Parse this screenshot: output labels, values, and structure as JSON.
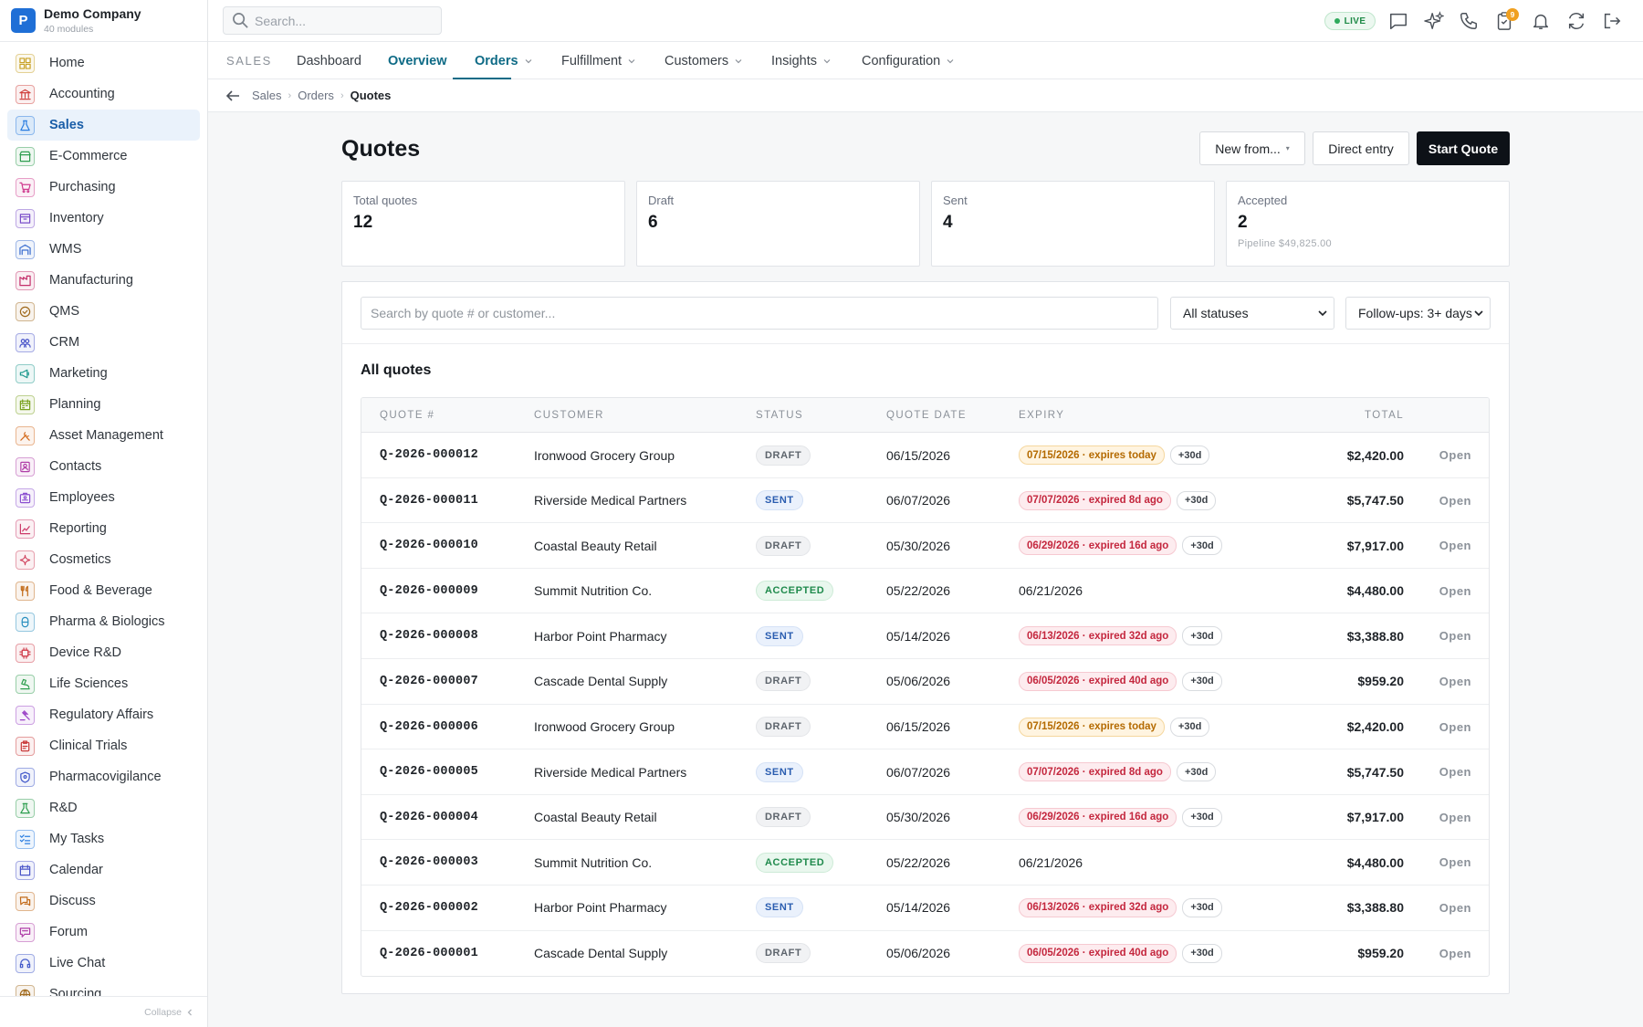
{
  "company": {
    "name": "Demo Company",
    "modules": "40 modules",
    "logo_letter": "P"
  },
  "sidebar": {
    "items": [
      {
        "label": "Home",
        "icon": "grid-icon",
        "color": "#c9a227"
      },
      {
        "label": "Accounting",
        "icon": "bank-icon",
        "color": "#d0433f"
      },
      {
        "label": "Sales",
        "icon": "flask-icon",
        "color": "#2a7de1",
        "active": true
      },
      {
        "label": "E-Commerce",
        "icon": "storefront-icon",
        "color": "#2e9e4f"
      },
      {
        "label": "Purchasing",
        "icon": "cart-icon",
        "color": "#d03c8f"
      },
      {
        "label": "Inventory",
        "icon": "box-icon",
        "color": "#7a4ec9"
      },
      {
        "label": "WMS",
        "icon": "warehouse-icon",
        "color": "#3c6fd0"
      },
      {
        "label": "Manufacturing",
        "icon": "factory-icon",
        "color": "#c42f6b"
      },
      {
        "label": "QMS",
        "icon": "badge-check-icon",
        "color": "#a06a1d"
      },
      {
        "label": "CRM",
        "icon": "users-icon",
        "color": "#4a55c9"
      },
      {
        "label": "Marketing",
        "icon": "megaphone-icon",
        "color": "#1f9a8f"
      },
      {
        "label": "Planning",
        "icon": "calendar-grid-icon",
        "color": "#7aa21f"
      },
      {
        "label": "Asset Management",
        "icon": "tools-icon",
        "color": "#d36a1c"
      },
      {
        "label": "Contacts",
        "icon": "contact-icon",
        "color": "#b03fa8"
      },
      {
        "label": "Employees",
        "icon": "id-badge-icon",
        "color": "#8a4fd0"
      },
      {
        "label": "Reporting",
        "icon": "chart-icon",
        "color": "#cc3a6a"
      },
      {
        "label": "Cosmetics",
        "icon": "sparkle-icon",
        "color": "#d0435e"
      },
      {
        "label": "Food & Beverage",
        "icon": "utensils-icon",
        "color": "#c26a18"
      },
      {
        "label": "Pharma & Biologics",
        "icon": "pill-icon",
        "color": "#2a8fbf"
      },
      {
        "label": "Device R&D",
        "icon": "chip-icon",
        "color": "#d03c4a"
      },
      {
        "label": "Life Sciences",
        "icon": "microscope-icon",
        "color": "#2e9e4f"
      },
      {
        "label": "Regulatory Affairs",
        "icon": "gavel-icon",
        "color": "#9a40c6"
      },
      {
        "label": "Clinical Trials",
        "icon": "clipboard-icon",
        "color": "#c93a3a"
      },
      {
        "label": "Pharmacovigilance",
        "icon": "shield-icon",
        "color": "#3f56c9"
      },
      {
        "label": "R&D",
        "icon": "beaker-icon",
        "color": "#2e9e4f"
      },
      {
        "label": "My Tasks",
        "icon": "checklist-icon",
        "color": "#2a7de1"
      },
      {
        "label": "Calendar",
        "icon": "calendar-icon",
        "color": "#4a55c9"
      },
      {
        "label": "Discuss",
        "icon": "chat-icon",
        "color": "#c26a18"
      },
      {
        "label": "Forum",
        "icon": "forum-icon",
        "color": "#b03fa8"
      },
      {
        "label": "Live Chat",
        "icon": "headset-icon",
        "color": "#3f56c9"
      },
      {
        "label": "Sourcing",
        "icon": "globe-icon",
        "color": "#a06a1d"
      }
    ],
    "collapse_label": "Collapse"
  },
  "topbar": {
    "search_placeholder": "Search...",
    "live_label": "LIVE",
    "notification_badge": "9"
  },
  "tabs": {
    "section": "SALES",
    "items": [
      {
        "label": "Dashboard"
      },
      {
        "label": "Overview"
      },
      {
        "label": "Orders"
      },
      {
        "label": "Fulfillment"
      },
      {
        "label": "Customers"
      },
      {
        "label": "Insights"
      },
      {
        "label": "Configuration"
      }
    ]
  },
  "breadcrumb": [
    "Sales",
    "Orders",
    "Quotes"
  ],
  "page": {
    "title": "Quotes",
    "actions": {
      "new_from": "New from...",
      "direct_entry": "Direct entry",
      "start_quote": "Start Quote"
    }
  },
  "kpis": [
    {
      "label": "Total quotes",
      "value": "12",
      "sub": ""
    },
    {
      "label": "Draft",
      "value": "6",
      "sub": ""
    },
    {
      "label": "Sent",
      "value": "4",
      "sub": ""
    },
    {
      "label": "Accepted",
      "value": "2",
      "sub": "Pipeline $49,825.00"
    }
  ],
  "filters": {
    "search_placeholder": "Search by quote # or customer...",
    "status_value": "All statuses",
    "followup_value": "Follow-ups: 3+ days"
  },
  "table": {
    "title": "All quotes",
    "columns": [
      "QUOTE #",
      "CUSTOMER",
      "STATUS",
      "QUOTE DATE",
      "EXPIRY",
      "TOTAL"
    ],
    "rows": [
      {
        "quote": "Q-2026-000012",
        "customer": "Ironwood Grocery Group",
        "status": "DRAFT",
        "date": "06/15/2026",
        "expiry": "07/15/2026 · expires today",
        "expiry_kind": "today",
        "extend": "+30d",
        "total": "$2,420.00",
        "action": "Open"
      },
      {
        "quote": "Q-2026-000011",
        "customer": "Riverside Medical Partners",
        "status": "SENT",
        "date": "06/07/2026",
        "expiry": "07/07/2026 · expired 8d ago",
        "expiry_kind": "expired",
        "extend": "+30d",
        "total": "$5,747.50",
        "action": "Open"
      },
      {
        "quote": "Q-2026-000010",
        "customer": "Coastal Beauty Retail",
        "status": "DRAFT",
        "date": "05/30/2026",
        "expiry": "06/29/2026 · expired 16d ago",
        "expiry_kind": "expired",
        "extend": "+30d",
        "total": "$7,917.00",
        "action": "Open"
      },
      {
        "quote": "Q-2026-000009",
        "customer": "Summit Nutrition Co.",
        "status": "ACCEPTED",
        "date": "05/22/2026",
        "expiry": "06/21/2026",
        "expiry_kind": "plain",
        "extend": "",
        "total": "$4,480.00",
        "action": "Open"
      },
      {
        "quote": "Q-2026-000008",
        "customer": "Harbor Point Pharmacy",
        "status": "SENT",
        "date": "05/14/2026",
        "expiry": "06/13/2026 · expired 32d ago",
        "expiry_kind": "expired",
        "extend": "+30d",
        "total": "$3,388.80",
        "action": "Open"
      },
      {
        "quote": "Q-2026-000007",
        "customer": "Cascade Dental Supply",
        "status": "DRAFT",
        "date": "05/06/2026",
        "expiry": "06/05/2026 · expired 40d ago",
        "expiry_kind": "expired",
        "extend": "+30d",
        "total": "$959.20",
        "action": "Open"
      },
      {
        "quote": "Q-2026-000006",
        "customer": "Ironwood Grocery Group",
        "status": "DRAFT",
        "date": "06/15/2026",
        "expiry": "07/15/2026 · expires today",
        "expiry_kind": "today",
        "extend": "+30d",
        "total": "$2,420.00",
        "action": "Open"
      },
      {
        "quote": "Q-2026-000005",
        "customer": "Riverside Medical Partners",
        "status": "SENT",
        "date": "06/07/2026",
        "expiry": "07/07/2026 · expired 8d ago",
        "expiry_kind": "expired",
        "extend": "+30d",
        "total": "$5,747.50",
        "action": "Open"
      },
      {
        "quote": "Q-2026-000004",
        "customer": "Coastal Beauty Retail",
        "status": "DRAFT",
        "date": "05/30/2026",
        "expiry": "06/29/2026 · expired 16d ago",
        "expiry_kind": "expired",
        "extend": "+30d",
        "total": "$7,917.00",
        "action": "Open"
      },
      {
        "quote": "Q-2026-000003",
        "customer": "Summit Nutrition Co.",
        "status": "ACCEPTED",
        "date": "05/22/2026",
        "expiry": "06/21/2026",
        "expiry_kind": "plain",
        "extend": "",
        "total": "$4,480.00",
        "action": "Open"
      },
      {
        "quote": "Q-2026-000002",
        "customer": "Harbor Point Pharmacy",
        "status": "SENT",
        "date": "05/14/2026",
        "expiry": "06/13/2026 · expired 32d ago",
        "expiry_kind": "expired",
        "extend": "+30d",
        "total": "$3,388.80",
        "action": "Open"
      },
      {
        "quote": "Q-2026-000001",
        "customer": "Cascade Dental Supply",
        "status": "DRAFT",
        "date": "05/06/2026",
        "expiry": "06/05/2026 · expired 40d ago",
        "expiry_kind": "expired",
        "extend": "+30d",
        "total": "$959.20",
        "action": "Open"
      }
    ]
  }
}
